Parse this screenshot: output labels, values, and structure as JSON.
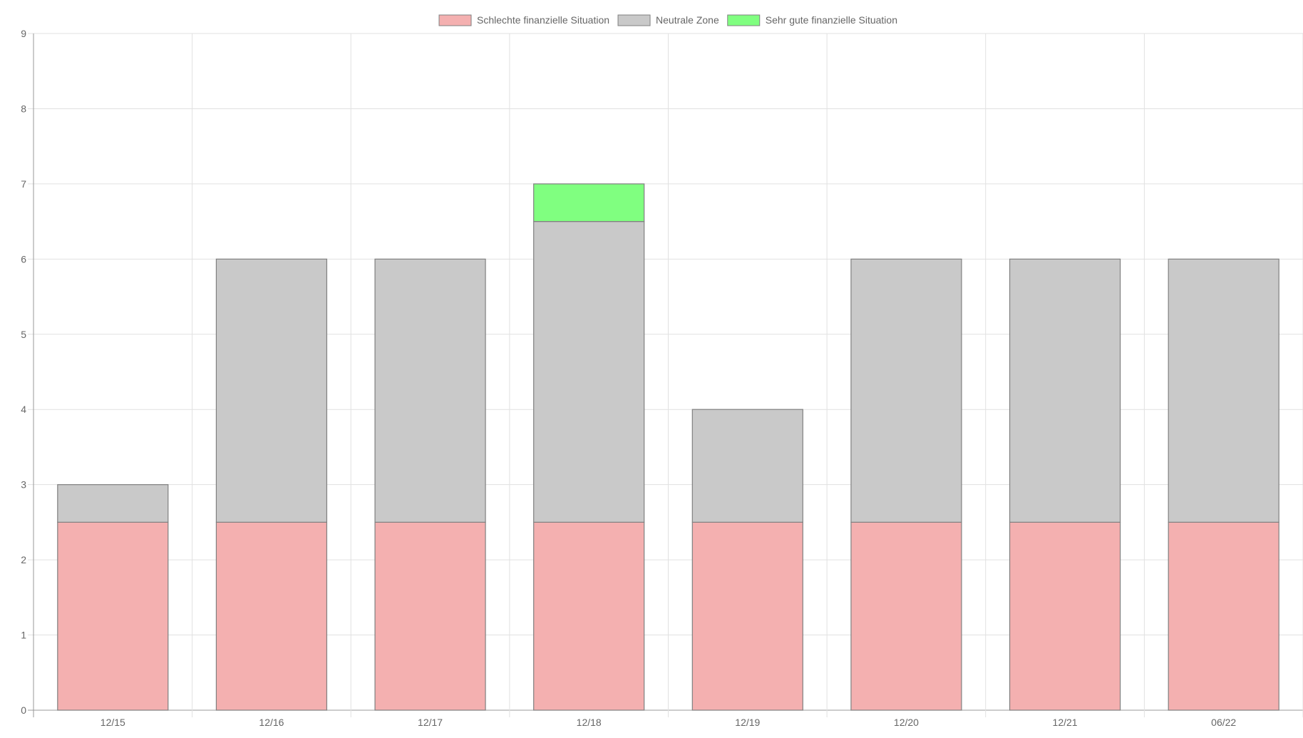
{
  "chart_data": {
    "type": "bar",
    "stacked": true,
    "categories": [
      "12/15",
      "12/16",
      "12/17",
      "12/18",
      "12/19",
      "12/20",
      "12/21",
      "06/22"
    ],
    "series": [
      {
        "name": "Schlechte finanzielle Situation",
        "color": "#f4b0b0",
        "values": [
          2.5,
          2.5,
          2.5,
          2.5,
          2.5,
          2.5,
          2.5,
          2.5
        ]
      },
      {
        "name": "Neutrale Zone",
        "color": "#c9c9c9",
        "values": [
          0.5,
          3.5,
          3.5,
          4.0,
          1.5,
          3.5,
          3.5,
          3.5
        ]
      },
      {
        "name": "Sehr gute finanzielle Situation",
        "color": "#80ff80",
        "values": [
          0,
          0,
          0,
          0.5,
          0,
          0,
          0,
          0
        ]
      }
    ],
    "ylim": [
      0,
      9
    ],
    "yticks": [
      0,
      1,
      2,
      3,
      4,
      5,
      6,
      7,
      8,
      9
    ],
    "grid": true,
    "legend_position": "top-center",
    "bar_border_color": "#808080"
  }
}
